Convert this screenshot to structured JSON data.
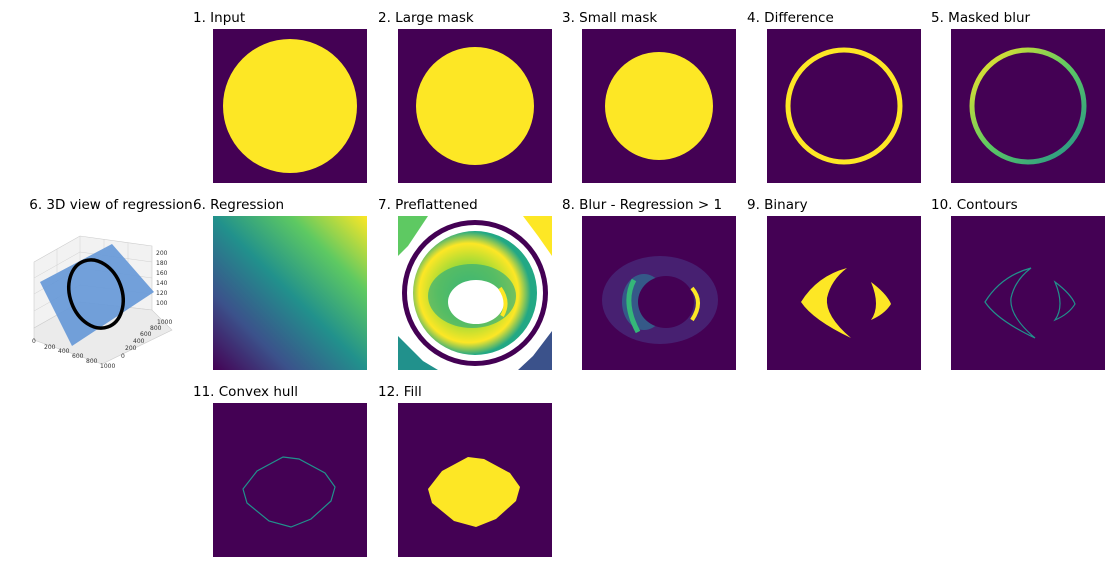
{
  "figure": {
    "view3d_title": "6. 3D view of regression",
    "view3d_axes": {
      "z_ticks": [
        "200",
        "180",
        "160",
        "140",
        "120",
        "100"
      ],
      "y_ticks": [
        "1000",
        "800",
        "600",
        "400",
        "200",
        "0"
      ],
      "x_ticks": [
        "0",
        "200",
        "400",
        "600",
        "800",
        "1000"
      ]
    },
    "panels": [
      {
        "title": "1. Input",
        "kind": "disk_large"
      },
      {
        "title": "2. Large mask",
        "kind": "disk_large2"
      },
      {
        "title": "3. Small mask",
        "kind": "disk_small"
      },
      {
        "title": "4. Difference",
        "kind": "ring"
      },
      {
        "title": "5. Masked blur",
        "kind": "ring_blur"
      },
      {
        "title": "6. Regression",
        "kind": "gradient"
      },
      {
        "title": "7. Preflattened",
        "kind": "preflat"
      },
      {
        "title": "8. Blur - Regression > 1",
        "kind": "blurdiff"
      },
      {
        "title": "9. Binary",
        "kind": "binary"
      },
      {
        "title": "10. Contours",
        "kind": "contours"
      },
      {
        "title": "11. Convex hull",
        "kind": "hull"
      },
      {
        "title": "12. Fill",
        "kind": "fill"
      }
    ],
    "colors": {
      "background": "#440154",
      "foreground": "#fde725",
      "teal": "#21918c",
      "green": "#5ec962",
      "blue": "#3b528b",
      "plane": "#6a9bd8"
    }
  }
}
